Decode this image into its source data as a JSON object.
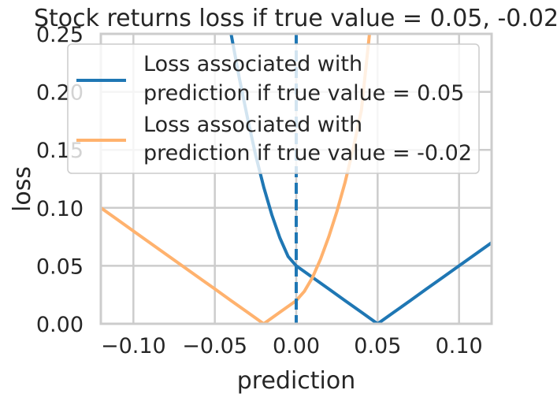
{
  "chart_data": {
    "type": "line",
    "title": "Stock returns loss if true value = 0.05, -0.02",
    "xlabel": "prediction",
    "ylabel": "loss",
    "xlim": [
      -0.12,
      0.12
    ],
    "ylim": [
      0.0,
      0.25
    ],
    "x_ticks": [
      -0.1,
      -0.05,
      0.0,
      0.05,
      0.1
    ],
    "x_tick_labels": [
      "−0.10",
      "−0.05",
      "0.00",
      "0.05",
      "0.10"
    ],
    "y_ticks": [
      0.0,
      0.05,
      0.1,
      0.15,
      0.2,
      0.25
    ],
    "y_tick_labels": [
      "0.00",
      "0.05",
      "0.10",
      "0.15",
      "0.20",
      "0.25"
    ],
    "grid": true,
    "legend_position": "top-right",
    "vline": {
      "x": 0.0,
      "style": "dashed",
      "color": "#1f77b4"
    },
    "series": [
      {
        "name": "Loss associated with\n prediction if true value = 0.05",
        "color": "#1f77b4",
        "x": [
          -0.04,
          -0.035,
          -0.03,
          -0.025,
          -0.02,
          -0.015,
          -0.01,
          -0.005,
          0.0,
          0.01,
          0.02,
          0.03,
          0.04,
          0.05,
          0.06,
          0.07,
          0.08,
          0.09,
          0.1,
          0.11,
          0.12
        ],
        "y": [
          0.25,
          0.212,
          0.178,
          0.146,
          0.118,
          0.094,
          0.074,
          0.058,
          0.05,
          0.04,
          0.03,
          0.02,
          0.01,
          0.0,
          0.01,
          0.02,
          0.03,
          0.04,
          0.05,
          0.06,
          0.07
        ]
      },
      {
        "name": "Loss associated with\n prediction if true value = -0.02",
        "color": "#ffb26e",
        "x": [
          -0.12,
          -0.11,
          -0.1,
          -0.09,
          -0.08,
          -0.07,
          -0.06,
          -0.05,
          -0.04,
          -0.03,
          -0.02,
          -0.01,
          0.0,
          0.005,
          0.01,
          0.015,
          0.02,
          0.025,
          0.03,
          0.035,
          0.04,
          0.045
        ],
        "y": [
          0.1,
          0.09,
          0.08,
          0.07,
          0.06,
          0.05,
          0.04,
          0.03,
          0.02,
          0.01,
          0.0,
          0.01,
          0.02,
          0.028,
          0.04,
          0.056,
          0.075,
          0.097,
          0.122,
          0.151,
          0.184,
          0.25
        ]
      }
    ]
  }
}
